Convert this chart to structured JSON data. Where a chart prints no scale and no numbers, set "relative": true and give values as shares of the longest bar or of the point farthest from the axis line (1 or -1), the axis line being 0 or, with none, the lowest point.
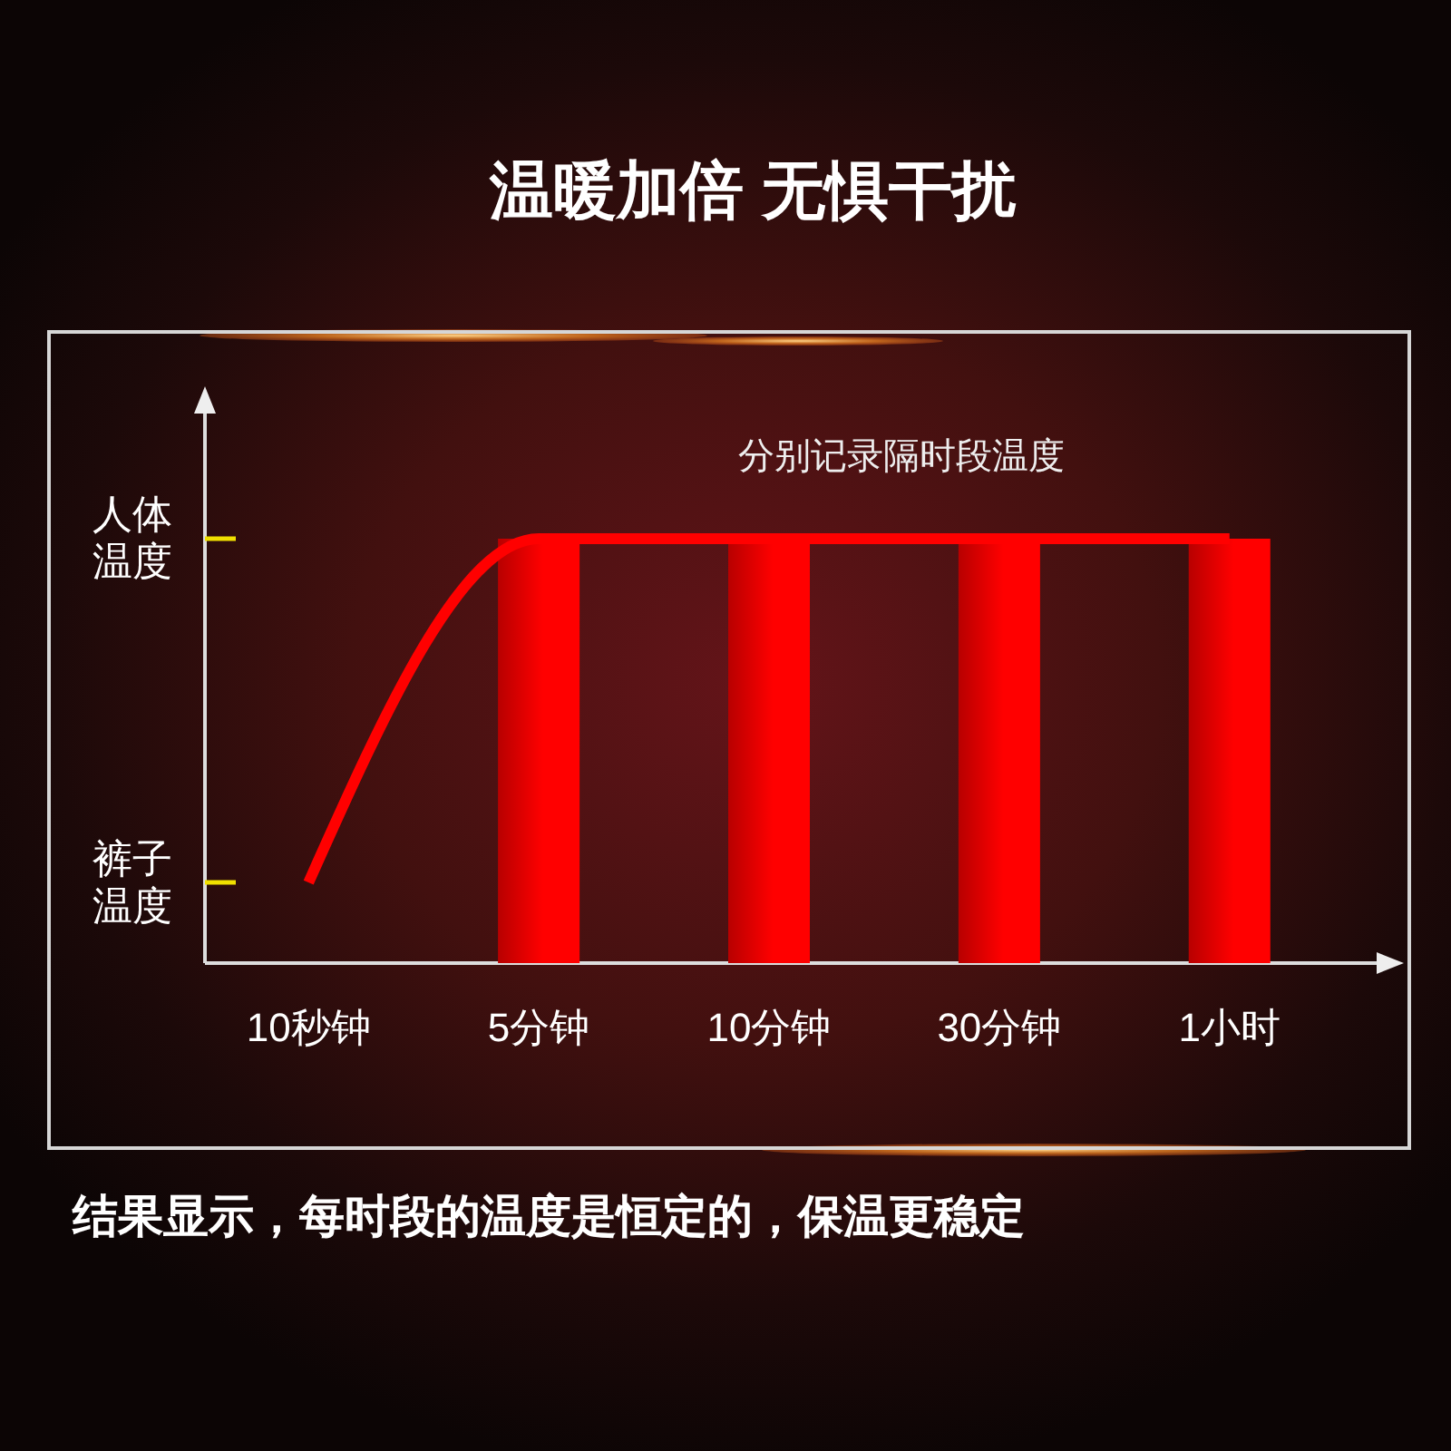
{
  "chart_data": {
    "type": "bar",
    "title": "温暖加倍 无惧干扰",
    "relative": true,
    "categories": [
      "10秒钟",
      "5分钟",
      "10分钟",
      "30分钟",
      "1小时"
    ],
    "series": [
      {
        "color": "#ff0000",
        "values": [
          null,
          1,
          1,
          1,
          1
        ]
      },
      {
        "type": "line",
        "color": "#ff0000",
        "values": [
          0.19,
          1,
          1,
          1,
          1
        ]
      }
    ],
    "annotations": [
      "分别记录隔时段温度",
      "人体温度",
      "裤子温度",
      "结果显示，每时段的温度是恒定的，保温更稳定"
    ]
  }
}
